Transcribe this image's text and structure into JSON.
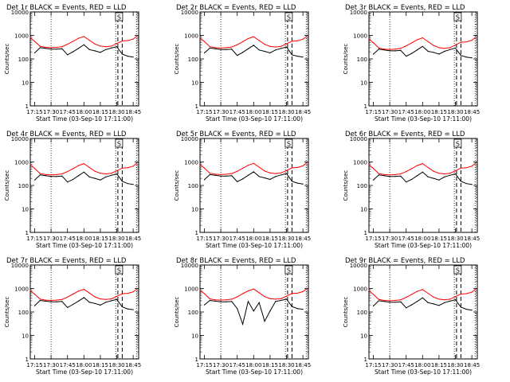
{
  "colors": {
    "events": "#000000",
    "lld": "#ff0000",
    "background": "#ffffff"
  },
  "shared": {
    "xlabel": "Start Time (03-Sep-10 17:11:00)",
    "ylabel": "Counts/sec",
    "x_ticks": [
      "17:15",
      "17:30",
      "17:45",
      "18:00",
      "18:15",
      "18:30",
      "18:45"
    ],
    "y_ticks": [
      "1",
      "10",
      "100",
      "1000",
      "10000"
    ],
    "marker_label": "S"
  },
  "chart_data": [
    {
      "type": "line",
      "title": "Det 1r BLACK = Events, RED = LLD",
      "yscale": "log",
      "ylim": [
        1,
        10000
      ],
      "xlim": [
        "17:11",
        "18:50"
      ],
      "grid": false,
      "x": [
        "17:11",
        "17:15",
        "17:20",
        "17:25",
        "17:30",
        "17:35",
        "17:40",
        "17:45",
        "17:50",
        "17:55",
        "18:00",
        "18:05",
        "18:10",
        "18:15",
        "18:20",
        "18:25",
        "18:30",
        "18:35",
        "18:40",
        "18:45",
        "18:48"
      ],
      "series": [
        {
          "name": "Events",
          "values": [
            null,
            180,
            300,
            280,
            260,
            260,
            270,
            150,
            200,
            280,
            400,
            250,
            220,
            190,
            250,
            290,
            330,
            160,
            130,
            120,
            null
          ]
        },
        {
          "name": "LLD",
          "values": [
            800,
            560,
            340,
            310,
            300,
            310,
            330,
            420,
            560,
            750,
            900,
            620,
            430,
            350,
            330,
            350,
            450,
            580,
            600,
            700,
            900
          ]
        }
      ],
      "vlines_dotted": [
        "17:30",
        "18:29",
        "18:48"
      ],
      "vlines_dashed": [
        "18:31",
        "18:35"
      ]
    },
    {
      "type": "line",
      "title": "Det 2r BLACK = Events, RED = LLD",
      "yscale": "log",
      "ylim": [
        1,
        10000
      ],
      "xlim": [
        "17:11",
        "18:50"
      ],
      "grid": false,
      "x": [
        "17:11",
        "17:15",
        "17:20",
        "17:25",
        "17:30",
        "17:35",
        "17:40",
        "17:45",
        "17:50",
        "17:55",
        "18:00",
        "18:05",
        "18:10",
        "18:15",
        "18:20",
        "18:25",
        "18:30",
        "18:35",
        "18:40",
        "18:45",
        "18:48"
      ],
      "series": [
        {
          "name": "Events",
          "values": [
            null,
            180,
            290,
            270,
            250,
            250,
            260,
            140,
            190,
            270,
            380,
            240,
            210,
            180,
            240,
            280,
            320,
            150,
            130,
            120,
            null
          ]
        },
        {
          "name": "LLD",
          "values": [
            780,
            550,
            330,
            300,
            290,
            300,
            320,
            400,
            540,
            730,
            880,
            600,
            420,
            340,
            320,
            340,
            440,
            570,
            590,
            690,
            880
          ]
        }
      ],
      "vlines_dotted": [
        "17:30",
        "18:29",
        "18:48"
      ],
      "vlines_dashed": [
        "18:31",
        "18:35"
      ]
    },
    {
      "type": "line",
      "title": "Det 3r BLACK = Events, RED = LLD",
      "yscale": "log",
      "ylim": [
        1,
        10000
      ],
      "xlim": [
        "17:11",
        "18:50"
      ],
      "grid": false,
      "x": [
        "17:11",
        "17:15",
        "17:20",
        "17:25",
        "17:30",
        "17:35",
        "17:40",
        "17:45",
        "17:50",
        "17:55",
        "18:00",
        "18:05",
        "18:10",
        "18:15",
        "18:20",
        "18:25",
        "18:30",
        "18:35",
        "18:40",
        "18:45",
        "18:48"
      ],
      "series": [
        {
          "name": "Events",
          "values": [
            null,
            160,
            260,
            240,
            220,
            220,
            230,
            130,
            170,
            240,
            340,
            210,
            190,
            160,
            210,
            250,
            290,
            140,
            120,
            110,
            null
          ]
        },
        {
          "name": "LLD",
          "values": [
            700,
            490,
            290,
            260,
            250,
            260,
            280,
            360,
            480,
            650,
            790,
            540,
            370,
            300,
            280,
            300,
            390,
            510,
            530,
            620,
            800
          ]
        }
      ],
      "vlines_dotted": [
        "17:30",
        "18:29",
        "18:48"
      ],
      "vlines_dashed": [
        "18:31",
        "18:35"
      ]
    },
    {
      "type": "line",
      "title": "Det 4r BLACK = Events, RED = LLD",
      "yscale": "log",
      "ylim": [
        1,
        10000
      ],
      "xlim": [
        "17:11",
        "18:50"
      ],
      "grid": false,
      "x": [
        "17:11",
        "17:15",
        "17:20",
        "17:25",
        "17:30",
        "17:35",
        "17:40",
        "17:45",
        "17:50",
        "17:55",
        "18:00",
        "18:05",
        "18:10",
        "18:15",
        "18:20",
        "18:25",
        "18:30",
        "18:35",
        "18:40",
        "18:45",
        "18:48"
      ],
      "series": [
        {
          "name": "Events",
          "values": [
            null,
            170,
            280,
            260,
            240,
            240,
            250,
            140,
            180,
            260,
            370,
            230,
            200,
            170,
            230,
            270,
            310,
            150,
            120,
            110,
            null
          ]
        },
        {
          "name": "LLD",
          "values": [
            760,
            530,
            320,
            290,
            280,
            290,
            310,
            390,
            520,
            700,
            850,
            580,
            400,
            330,
            310,
            330,
            420,
            550,
            570,
            660,
            860
          ]
        }
      ],
      "vlines_dotted": [
        "17:30",
        "18:29",
        "18:48"
      ],
      "vlines_dashed": [
        "18:31",
        "18:35"
      ]
    },
    {
      "type": "line",
      "title": "Det 5r BLACK = Events, RED = LLD",
      "yscale": "log",
      "ylim": [
        1,
        10000
      ],
      "xlim": [
        "17:11",
        "18:50"
      ],
      "grid": false,
      "x": [
        "17:11",
        "17:15",
        "17:20",
        "17:25",
        "17:30",
        "17:35",
        "17:40",
        "17:45",
        "17:50",
        "17:55",
        "18:00",
        "18:05",
        "18:10",
        "18:15",
        "18:20",
        "18:25",
        "18:30",
        "18:35",
        "18:40",
        "18:45",
        "18:48"
      ],
      "series": [
        {
          "name": "Events",
          "values": [
            null,
            175,
            290,
            270,
            250,
            250,
            260,
            145,
            190,
            270,
            380,
            240,
            210,
            180,
            240,
            280,
            320,
            150,
            125,
            115,
            null
          ]
        },
        {
          "name": "LLD",
          "values": [
            780,
            545,
            330,
            300,
            290,
            300,
            320,
            400,
            540,
            720,
            870,
            600,
            410,
            340,
            320,
            340,
            430,
            560,
            580,
            680,
            880
          ]
        }
      ],
      "vlines_dotted": [
        "17:30",
        "18:29",
        "18:48"
      ],
      "vlines_dashed": [
        "18:31",
        "18:35"
      ]
    },
    {
      "type": "line",
      "title": "Det 6r BLACK = Events, RED = LLD",
      "yscale": "log",
      "ylim": [
        1,
        10000
      ],
      "xlim": [
        "17:11",
        "18:50"
      ],
      "grid": false,
      "x": [
        "17:11",
        "17:15",
        "17:20",
        "17:25",
        "17:30",
        "17:35",
        "17:40",
        "17:45",
        "17:50",
        "17:55",
        "18:00",
        "18:05",
        "18:10",
        "18:15",
        "18:20",
        "18:25",
        "18:30",
        "18:35",
        "18:40",
        "18:45",
        "18:48"
      ],
      "series": [
        {
          "name": "Events",
          "values": [
            null,
            170,
            280,
            260,
            240,
            240,
            250,
            140,
            180,
            260,
            370,
            230,
            200,
            170,
            230,
            270,
            310,
            150,
            120,
            110,
            null
          ]
        },
        {
          "name": "LLD",
          "values": [
            760,
            530,
            320,
            290,
            280,
            290,
            310,
            390,
            520,
            700,
            850,
            580,
            400,
            330,
            310,
            330,
            420,
            550,
            570,
            660,
            860
          ]
        }
      ],
      "vlines_dotted": [
        "17:30",
        "18:29",
        "18:48"
      ],
      "vlines_dashed": [
        "18:31",
        "18:35"
      ]
    },
    {
      "type": "line",
      "title": "Det 7r BLACK = Events, RED = LLD",
      "yscale": "log",
      "ylim": [
        1,
        10000
      ],
      "xlim": [
        "17:11",
        "18:50"
      ],
      "grid": false,
      "x": [
        "17:11",
        "17:15",
        "17:20",
        "17:25",
        "17:30",
        "17:35",
        "17:40",
        "17:45",
        "17:50",
        "17:55",
        "18:00",
        "18:05",
        "18:10",
        "18:15",
        "18:20",
        "18:25",
        "18:30",
        "18:35",
        "18:40",
        "18:45",
        "18:48"
      ],
      "series": [
        {
          "name": "Events",
          "values": [
            null,
            185,
            310,
            290,
            270,
            270,
            280,
            155,
            210,
            290,
            410,
            260,
            230,
            195,
            260,
            300,
            340,
            165,
            135,
            125,
            null
          ]
        },
        {
          "name": "LLD",
          "values": [
            820,
            575,
            350,
            320,
            310,
            320,
            340,
            430,
            580,
            770,
            920,
            640,
            440,
            360,
            340,
            360,
            460,
            600,
            620,
            720,
            920
          ]
        }
      ],
      "vlines_dotted": [
        "17:30",
        "18:29",
        "18:48"
      ],
      "vlines_dashed": [
        "18:31",
        "18:35"
      ]
    },
    {
      "type": "line",
      "title": "Det 8r BLACK = Events, RED = LLD",
      "yscale": "log",
      "ylim": [
        1,
        10000
      ],
      "xlim": [
        "17:11",
        "18:50"
      ],
      "grid": false,
      "x": [
        "17:11",
        "17:15",
        "17:20",
        "17:25",
        "17:30",
        "17:35",
        "17:40",
        "17:45",
        "17:50",
        "17:55",
        "18:00",
        "18:05",
        "18:10",
        "18:15",
        "18:20",
        "18:25",
        "18:30",
        "18:35",
        "18:40",
        "18:45",
        "18:48"
      ],
      "series": [
        {
          "name": "Events",
          "values": [
            null,
            200,
            310,
            290,
            270,
            270,
            280,
            140,
            30,
            280,
            110,
            250,
            40,
            110,
            280,
            310,
            350,
            170,
            140,
            130,
            null
          ]
        },
        {
          "name": "LLD",
          "values": [
            850,
            600,
            360,
            330,
            320,
            330,
            350,
            440,
            600,
            790,
            950,
            660,
            450,
            370,
            350,
            370,
            470,
            610,
            630,
            740,
            950
          ]
        }
      ],
      "vlines_dotted": [
        "17:30",
        "18:29",
        "18:48"
      ],
      "vlines_dashed": [
        "18:31",
        "18:35"
      ]
    },
    {
      "type": "line",
      "title": "Det 9r BLACK = Events, RED = LLD",
      "yscale": "log",
      "ylim": [
        1,
        10000
      ],
      "xlim": [
        "17:11",
        "18:50"
      ],
      "grid": false,
      "x": [
        "17:11",
        "17:15",
        "17:20",
        "17:25",
        "17:30",
        "17:35",
        "17:40",
        "17:45",
        "17:50",
        "17:55",
        "18:00",
        "18:05",
        "18:10",
        "18:15",
        "18:20",
        "18:25",
        "18:30",
        "18:35",
        "18:40",
        "18:45",
        "18:48"
      ],
      "series": [
        {
          "name": "Events",
          "values": [
            null,
            180,
            300,
            280,
            260,
            260,
            270,
            150,
            200,
            280,
            400,
            250,
            220,
            190,
            250,
            290,
            330,
            160,
            130,
            120,
            null
          ]
        },
        {
          "name": "LLD",
          "values": [
            800,
            560,
            340,
            310,
            300,
            310,
            330,
            420,
            560,
            750,
            900,
            620,
            430,
            350,
            330,
            350,
            450,
            580,
            600,
            700,
            900
          ]
        }
      ],
      "vlines_dotted": [
        "17:30",
        "18:29",
        "18:48"
      ],
      "vlines_dashed": [
        "18:31",
        "18:35"
      ]
    }
  ]
}
